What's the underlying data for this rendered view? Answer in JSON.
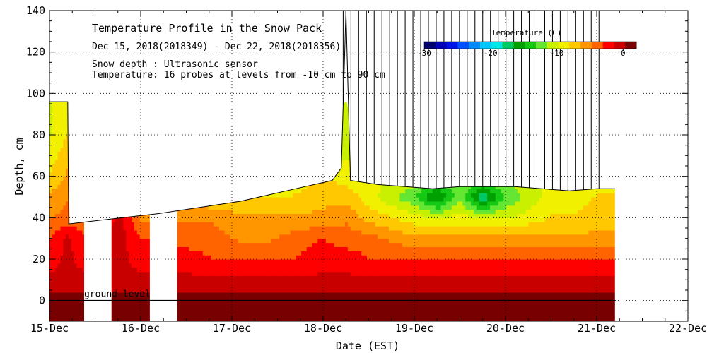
{
  "chart_data": {
    "type": "heatmap",
    "title": "Temperature Profile in the Snow Pack",
    "date_range": "Dec 15, 2018(2018349) - Dec 22, 2018(2018356)",
    "note_snow_depth": "Snow depth : Ultrasonic sensor",
    "note_temperature": "Temperature: 16 probes at levels from -10 cm to 90 cm",
    "xlabel": "Date (EST)",
    "ylabel": "Depth, cm",
    "x_tick_labels": [
      "15-Dec",
      "16-Dec",
      "17-Dec",
      "18-Dec",
      "19-Dec",
      "20-Dec",
      "21-Dec",
      "22-Dec"
    ],
    "x_range_days": [
      0,
      7
    ],
    "ylim": [
      -10,
      140
    ],
    "y_ticks": [
      0,
      20,
      40,
      60,
      80,
      100,
      120,
      140
    ],
    "grid": true,
    "ground_level_label": "ground level",
    "ground_level_depth": 0,
    "colorbar": {
      "title": "Temperature (C)",
      "range": [
        -30,
        2
      ],
      "tick_values": [
        -30,
        -20,
        -10,
        0
      ],
      "tick_labels": [
        "-30",
        "-20",
        "-10",
        "0"
      ],
      "colors": [
        "#00006e",
        "#0000b4",
        "#0014e6",
        "#0050ff",
        "#008cff",
        "#00c8ff",
        "#00e6e6",
        "#00c864",
        "#00a000",
        "#14c814",
        "#64e632",
        "#c8f000",
        "#f0f000",
        "#ffc800",
        "#ff9600",
        "#ff6400",
        "#ff0000",
        "#c80000",
        "#780000"
      ]
    },
    "data_gaps_days": [
      [
        0.38,
        0.68
      ],
      [
        1.1,
        1.4
      ]
    ],
    "snow_depth_series": {
      "days": [
        0.0,
        0.2,
        0.21,
        0.4,
        0.6,
        0.8,
        1.0,
        1.2,
        1.5,
        1.8,
        2.1,
        2.4,
        2.8,
        3.0,
        3.1,
        3.2,
        3.25,
        3.3,
        3.6,
        3.9,
        4.2,
        4.5,
        4.8,
        5.1,
        5.4,
        5.7,
        6.0,
        6.2
      ],
      "depth_cm": [
        96,
        96,
        37,
        38,
        39,
        40,
        41,
        42,
        44,
        46,
        48,
        51,
        55,
        57,
        58,
        64,
        140,
        58,
        56,
        55,
        54,
        55,
        55,
        55,
        54,
        53,
        54,
        54
      ]
    },
    "temperature_field": {
      "days": [
        0.0,
        0.2,
        0.4,
        0.6,
        0.8,
        1.0,
        1.2,
        1.5,
        1.8,
        2.1,
        2.4,
        2.7,
        3.0,
        3.25,
        3.5,
        3.75,
        4.0,
        4.25,
        4.5,
        4.75,
        5.0,
        5.25,
        5.5,
        5.75,
        6.0,
        6.2
      ],
      "depths_cm": [
        -10,
        0,
        10,
        20,
        30,
        40,
        50,
        60,
        70,
        80,
        90
      ],
      "values_c": [
        [
          1,
          1,
          1,
          1,
          1,
          1,
          1,
          1,
          1,
          1,
          1,
          1,
          1,
          1,
          1,
          1,
          1,
          1,
          1,
          1,
          1,
          1,
          1,
          1,
          1,
          1
        ],
        [
          1,
          1,
          1,
          1,
          1,
          1,
          1,
          1,
          1,
          1,
          1,
          1,
          1,
          1,
          1,
          1,
          1,
          1,
          1,
          1,
          1,
          1,
          1,
          1,
          1,
          1
        ],
        [
          -1,
          -1,
          -1,
          -1,
          -1,
          -1,
          -1,
          -1,
          -1,
          -1,
          -1,
          -1,
          -1,
          -1,
          -1,
          -1,
          -1,
          -1,
          -1,
          -1,
          -1,
          -1,
          -1,
          -1,
          -1,
          -1
        ],
        [
          -2,
          -1,
          -2,
          -1,
          -1,
          -2,
          -2,
          -2,
          -3,
          -3,
          -3,
          -3,
          -2,
          -2,
          -3,
          -3,
          -3,
          -3,
          -3,
          -3,
          -3,
          -3,
          -3,
          -3,
          -3,
          -3
        ],
        [
          -3,
          -1,
          -3,
          -1,
          -1,
          -3,
          -3,
          -4,
          -4,
          -5,
          -5,
          -4,
          -3,
          -4,
          -4,
          -5,
          -6,
          -6,
          -6,
          -6,
          -6,
          -6,
          -6,
          -6,
          -6,
          -6
        ],
        [
          -5,
          -4,
          -4,
          -2,
          -1,
          -5,
          -5,
          -5,
          -5,
          -6,
          -6,
          -6,
          -6,
          -5,
          -7,
          -8,
          -9,
          -10,
          -9,
          -10,
          -10,
          -9,
          -8,
          -8,
          -7,
          -7
        ],
        [
          -6,
          -5,
          -5,
          -4,
          -3,
          -6,
          -7,
          -7,
          -8,
          -8,
          -8,
          -8,
          -7,
          -7,
          -9,
          -11,
          -13,
          -17,
          -12,
          -18,
          -13,
          -11,
          -9,
          -9,
          -8,
          -8
        ],
        [
          -8,
          -6,
          -7,
          -6,
          -5,
          -7,
          -8,
          -9,
          -9,
          -10,
          -10,
          -9,
          -8,
          -9,
          -9,
          -10,
          -10,
          -12,
          -11,
          -12,
          -11,
          -10,
          -10,
          -10,
          -9,
          -9
        ],
        [
          -9,
          -7,
          -8,
          -7,
          -6,
          -8,
          -9,
          -10,
          -10,
          -11,
          -11,
          -10,
          -9,
          -10,
          -10,
          -10,
          -10,
          -11,
          -10,
          -11,
          -10,
          -10,
          -10,
          -10,
          -10,
          -10
        ],
        [
          -10,
          -8,
          -9,
          -8,
          -7,
          -9,
          -10,
          -11,
          -11,
          -12,
          -12,
          -11,
          -10,
          -11,
          -10,
          -10,
          -10,
          -10,
          -10,
          -10,
          -10,
          -10,
          -10,
          -10,
          -10,
          -10
        ],
        [
          -10,
          -9,
          -10,
          -9,
          -8,
          -10,
          -11,
          -12,
          -12,
          -13,
          -13,
          -12,
          -11,
          -11,
          -10,
          -10,
          -10,
          -10,
          -10,
          -10,
          -10,
          -10,
          -10,
          -10,
          -10,
          -10
        ]
      ]
    }
  }
}
